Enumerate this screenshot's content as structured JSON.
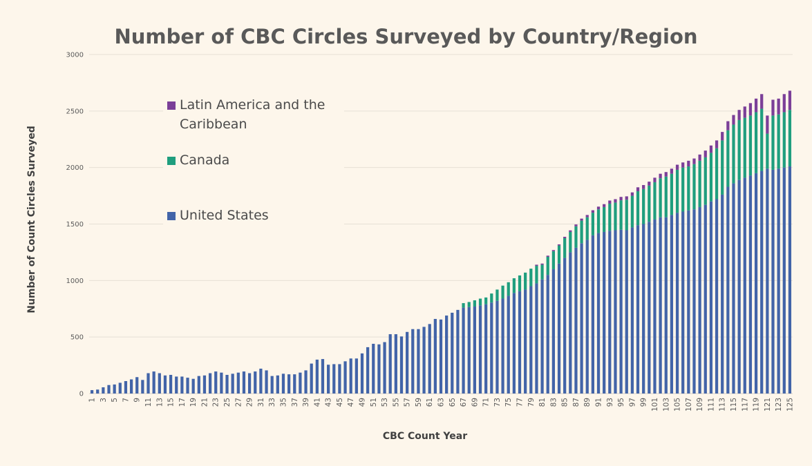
{
  "chart_data": {
    "type": "bar",
    "stacked": true,
    "title": "Number of CBC Circles Surveyed by Country/Region",
    "xlabel": "CBC Count Year",
    "ylabel": "Number of Count Circles Surveyed",
    "ylim": [
      0,
      3000
    ],
    "yticks": [
      0,
      500,
      1000,
      1500,
      2000,
      2500,
      3000
    ],
    "grid": true,
    "legend_position": "upper-left",
    "x_start": 1,
    "x_end": 125,
    "x_tick_step": 2,
    "series": [
      {
        "name": "United States",
        "color": "#4264a8",
        "values": [
          30,
          35,
          55,
          75,
          80,
          95,
          110,
          125,
          145,
          120,
          180,
          195,
          180,
          160,
          165,
          150,
          150,
          140,
          130,
          155,
          160,
          180,
          195,
          185,
          165,
          175,
          185,
          195,
          180,
          195,
          220,
          205,
          155,
          160,
          175,
          170,
          170,
          185,
          205,
          265,
          300,
          305,
          255,
          260,
          260,
          285,
          310,
          310,
          355,
          410,
          440,
          435,
          455,
          525,
          525,
          505,
          545,
          570,
          570,
          590,
          615,
          660,
          655,
          690,
          715,
          740,
          760,
          765,
          770,
          780,
          790,
          805,
          820,
          840,
          865,
          890,
          905,
          920,
          950,
          975,
          1010,
          1050,
          1100,
          1150,
          1200,
          1250,
          1290,
          1330,
          1360,
          1400,
          1420,
          1430,
          1440,
          1445,
          1450,
          1445,
          1470,
          1490,
          1500,
          1520,
          1540,
          1560,
          1560,
          1580,
          1600,
          1610,
          1620,
          1630,
          1650,
          1670,
          1700,
          1720,
          1760,
          1830,
          1860,
          1890,
          1910,
          1930,
          1950,
          1970,
          1990,
          1980,
          1990,
          2000,
          2010
        ]
      },
      {
        "name": "Canada",
        "color": "#1f9e7e",
        "values": [
          0,
          0,
          0,
          0,
          0,
          0,
          0,
          0,
          0,
          0,
          0,
          0,
          0,
          0,
          0,
          0,
          0,
          0,
          0,
          0,
          0,
          0,
          0,
          0,
          0,
          0,
          0,
          0,
          0,
          0,
          0,
          0,
          0,
          0,
          0,
          0,
          0,
          0,
          0,
          0,
          0,
          0,
          0,
          0,
          0,
          0,
          0,
          0,
          0,
          0,
          0,
          0,
          0,
          0,
          0,
          0,
          0,
          0,
          0,
          0,
          0,
          0,
          0,
          0,
          0,
          0,
          40,
          45,
          55,
          60,
          60,
          80,
          100,
          115,
          120,
          130,
          140,
          150,
          155,
          155,
          130,
          160,
          160,
          160,
          175,
          180,
          190,
          200,
          200,
          200,
          210,
          220,
          240,
          245,
          260,
          270,
          280,
          300,
          310,
          320,
          330,
          345,
          360,
          365,
          380,
          390,
          390,
          400,
          410,
          420,
          430,
          450,
          480,
          500,
          520,
          530,
          530,
          530,
          540,
          550,
          310,
          480,
          480,
          490,
          500
        ]
      },
      {
        "name": "Latin America and the Caribbean",
        "color": "#7b3f98",
        "values": [
          0,
          0,
          0,
          0,
          0,
          0,
          0,
          0,
          0,
          0,
          0,
          0,
          0,
          0,
          0,
          0,
          0,
          0,
          0,
          0,
          0,
          0,
          0,
          0,
          0,
          0,
          0,
          0,
          0,
          0,
          0,
          0,
          0,
          0,
          0,
          0,
          0,
          0,
          0,
          0,
          0,
          0,
          0,
          0,
          0,
          0,
          0,
          0,
          0,
          0,
          0,
          0,
          0,
          0,
          0,
          0,
          0,
          0,
          0,
          0,
          0,
          0,
          0,
          0,
          0,
          0,
          0,
          0,
          0,
          0,
          0,
          0,
          0,
          0,
          0,
          0,
          0,
          0,
          0,
          10,
          10,
          10,
          10,
          10,
          12,
          14,
          16,
          18,
          20,
          22,
          24,
          26,
          28,
          30,
          30,
          30,
          30,
          35,
          35,
          35,
          40,
          40,
          40,
          45,
          45,
          45,
          50,
          50,
          55,
          60,
          65,
          70,
          75,
          80,
          85,
          90,
          100,
          110,
          120,
          130,
          160,
          140,
          140,
          160,
          170
        ]
      }
    ]
  }
}
